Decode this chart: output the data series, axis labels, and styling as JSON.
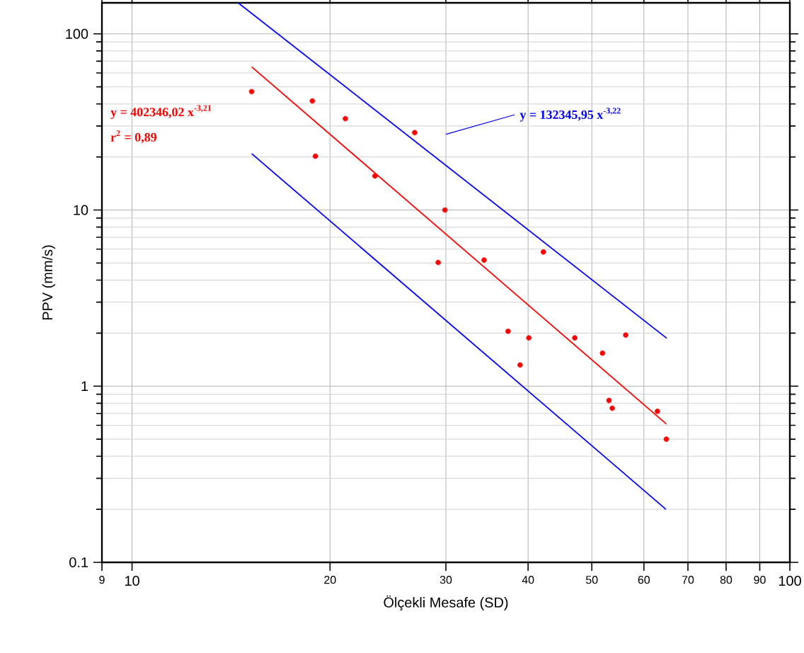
{
  "chart_data": {
    "type": "scatter",
    "xlabel": "Ölçekli Mesafe (SD)",
    "ylabel": "PPV (mm/s)",
    "log": "xy",
    "grid": true,
    "line_style": "solid",
    "xlim": [
      9,
      100
    ],
    "ylim": [
      0.1,
      150
    ],
    "xticks": [
      9,
      10,
      20,
      30,
      40,
      50,
      60,
      70,
      80,
      90,
      100
    ],
    "yticks": [
      0.1,
      {
        "value": 0.2,
        "label": null
      },
      {
        "value": 0.3,
        "label": null
      },
      {
        "value": 0.4,
        "label": null
      },
      {
        "value": 0.5,
        "label": null
      },
      {
        "value": 0.6,
        "label": null
      },
      {
        "value": 0.7,
        "label": null
      },
      {
        "value": 0.8,
        "label": null
      },
      {
        "value": 0.9,
        "label": null
      },
      1,
      {
        "value": 2,
        "label": null
      },
      {
        "value": 3,
        "label": null
      },
      {
        "value": 4,
        "label": null
      },
      {
        "value": 5,
        "label": null
      },
      {
        "value": 6,
        "label": null
      },
      {
        "value": 7,
        "label": null
      },
      {
        "value": 8,
        "label": null
      },
      {
        "value": 9,
        "label": null
      },
      10,
      {
        "value": 20,
        "label": null
      },
      {
        "value": 30,
        "label": null
      },
      {
        "value": 40,
        "label": null
      },
      {
        "value": 50,
        "label": null
      },
      {
        "value": 60,
        "label": null
      },
      {
        "value": 70,
        "label": null
      },
      {
        "value": 80,
        "label": null
      },
      {
        "value": 90,
        "label": null
      },
      100
    ],
    "series": [
      {
        "marker": "circle",
        "color": "#ff0000",
        "x": [
          15.2,
          18.8,
          19.0,
          21.1,
          23.4,
          26.9,
          29.9,
          29.2,
          34.3,
          42.2,
          37.3,
          40.1,
          38.9,
          47.1,
          51.9,
          56.3,
          53.1,
          53.7,
          62.9,
          64.9
        ],
        "values": [
          47,
          41.6,
          20.2,
          33,
          15.6,
          27.5,
          10,
          5.04,
          5.2,
          5.78,
          2.05,
          1.88,
          1.32,
          1.88,
          1.54,
          1.95,
          0.83,
          0.75,
          0.72,
          0.5
        ]
      },
      {
        "type": "line",
        "color": "#ff0000",
        "x": [
          15.2,
          64.9
        ],
        "values": [
          65,
          0.61
        ]
      },
      {
        "type": "line",
        "color": "#0000ff",
        "x": [
          14.5,
          65.0
        ],
        "values": [
          150,
          1.87
        ]
      },
      {
        "type": "line",
        "color": "#0000ff",
        "x": [
          15.2,
          64.8
        ],
        "values": [
          20.9,
          0.2
        ]
      }
    ],
    "annotations": [
      "y = 402346,02 x$^{-3,21}$",
      "r$^{2}$ = 0,89",
      "y = 132345,95 x$^{-3,22}$"
    ]
  }
}
